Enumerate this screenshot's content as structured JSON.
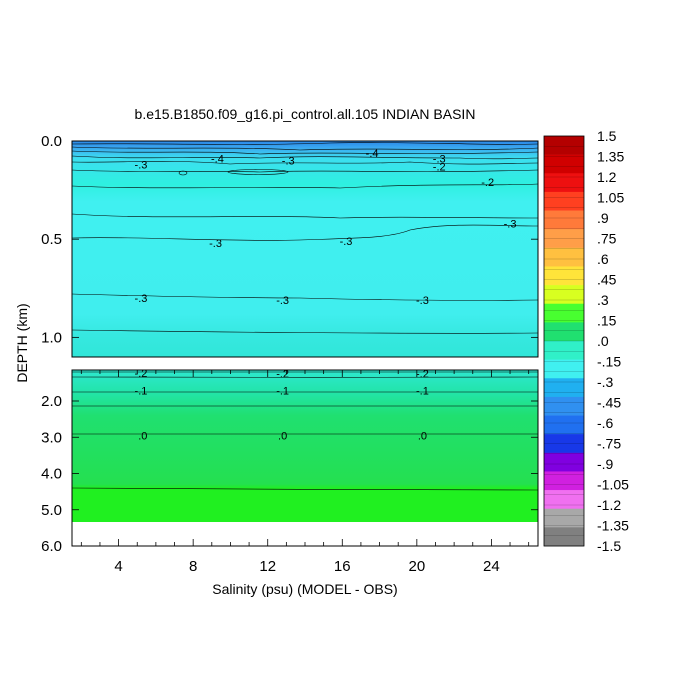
{
  "chart_data": {
    "type": "heatmap",
    "title": "b.e15.B1850.f09_g16.pi_control.all.105 INDIAN BASIN",
    "xlabel": "Salinity (psu) (MODEL - OBS)",
    "ylabel": "DEPTH (km)",
    "xlim": [
      1.5,
      26.5
    ],
    "x_ticks": [
      "4",
      "8",
      "12",
      "16",
      "20",
      "24"
    ],
    "upper_panel": {
      "ylim": [
        0.0,
        1.1
      ],
      "y_ticks": [
        "0.0",
        "0.5",
        "1.0"
      ]
    },
    "lower_panel": {
      "ylim": [
        1.1,
        6.0
      ],
      "y_ticks": [
        "2.0",
        "3.0",
        "4.0",
        "5.0",
        "6.0"
      ]
    },
    "colorbar_labels": [
      "1.5",
      "1.35",
      "1.2",
      "1.05",
      ".9",
      ".75",
      ".6",
      ".45",
      ".3",
      ".15",
      ".0",
      "-.15",
      "-.3",
      "-.45",
      "-.6",
      "-.75",
      "-.9",
      "-1.05",
      "-1.2",
      "-1.35",
      "-1.5"
    ],
    "colorbar_colors": [
      "#b40000",
      "#d00000",
      "#ee1010",
      "#ff4020",
      "#ff7a3a",
      "#ff9e48",
      "#ffc040",
      "#ffe43a",
      "#d8ff20",
      "#48ff30",
      "#20e070",
      "#30f0c8",
      "#40f0f0",
      "#20b0f0",
      "#3090f0",
      "#2070f0",
      "#1838e8",
      "#8000e0",
      "#d020e0",
      "#f070f0",
      "#a8a8a8",
      "#808080"
    ],
    "contour_labels": [
      {
        "panel": "upper",
        "x": 5.2,
        "y": 0.12,
        "text": "-.3"
      },
      {
        "panel": "upper",
        "x": 9.3,
        "y": 0.09,
        "text": "-.4"
      },
      {
        "panel": "upper",
        "x": 13.1,
        "y": 0.1,
        "text": "-.3"
      },
      {
        "panel": "upper",
        "x": 17.6,
        "y": 0.06,
        "text": "-.4"
      },
      {
        "panel": "upper",
        "x": 21.2,
        "y": 0.09,
        "text": "-.3"
      },
      {
        "panel": "upper",
        "x": 21.2,
        "y": 0.13,
        "text": "-.2"
      },
      {
        "panel": "upper",
        "x": 23.8,
        "y": 0.21,
        "text": "-.2"
      },
      {
        "panel": "upper",
        "x": 25.0,
        "y": 0.42,
        "text": "-.3"
      },
      {
        "panel": "upper",
        "x": 9.2,
        "y": 0.52,
        "text": "-.3"
      },
      {
        "panel": "upper",
        "x": 16.2,
        "y": 0.51,
        "text": "-.3"
      },
      {
        "panel": "upper",
        "x": 5.2,
        "y": 0.8,
        "text": "-.3"
      },
      {
        "panel": "upper",
        "x": 12.8,
        "y": 0.81,
        "text": "-.3"
      },
      {
        "panel": "upper",
        "x": 20.3,
        "y": 0.81,
        "text": "-.3"
      },
      {
        "panel": "lower",
        "x": 5.2,
        "y": 1.19,
        "text": "-.2"
      },
      {
        "panel": "lower",
        "x": 12.8,
        "y": 1.2,
        "text": "-.2"
      },
      {
        "panel": "lower",
        "x": 20.3,
        "y": 1.2,
        "text": "-.2"
      },
      {
        "panel": "lower",
        "x": 5.2,
        "y": 1.7,
        "text": "-.1"
      },
      {
        "panel": "lower",
        "x": 12.8,
        "y": 1.7,
        "text": "-.1"
      },
      {
        "panel": "lower",
        "x": 20.3,
        "y": 1.7,
        "text": "-.1"
      },
      {
        "panel": "lower",
        "x": 5.3,
        "y": 2.95,
        "text": ".0"
      },
      {
        "panel": "lower",
        "x": 12.8,
        "y": 2.95,
        "text": ".0"
      },
      {
        "panel": "lower",
        "x": 20.3,
        "y": 2.95,
        "text": ".0"
      }
    ]
  }
}
